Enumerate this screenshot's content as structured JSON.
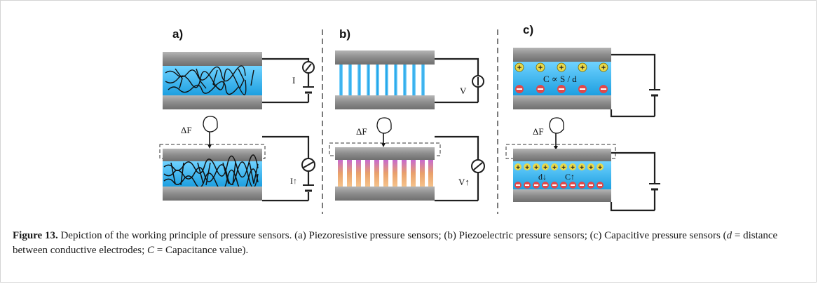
{
  "figure": {
    "panels": [
      {
        "id": "a",
        "label": "a)",
        "top_meter": "I",
        "bottom_meter": "I↑",
        "force_label": "ΔF"
      },
      {
        "id": "b",
        "label": "b)",
        "top_meter": "V",
        "bottom_meter": "V↑",
        "force_label": "ΔF"
      },
      {
        "id": "c",
        "label": "c)",
        "formula": "C ∝ S / d",
        "bottom_d": "d↓",
        "bottom_c": "C↑",
        "force_label": "ΔF"
      }
    ],
    "colors": {
      "electrode": "#8e8e8e",
      "electrode_edge": "#6b6b6b",
      "medium": "#22a6e6",
      "medium_light": "#7fd0f5",
      "piezo": "#e39a6c",
      "plus_charge": "#e8d84a",
      "minus_charge": "#e0484a",
      "wire": "#1f1f1f"
    }
  },
  "caption": {
    "label": "Figure 13.",
    "text_1": " Depiction of the working principle of pressure sensors. (a) Piezoresistive pressure sensors; (b) Piezoelectric pressure sensors; (c) Capacitive pressure sensors (",
    "d_symbol": "d",
    "text_2": " = distance between conductive electrodes; ",
    "c_symbol": "C",
    "text_3": " = Capacitance value)."
  }
}
